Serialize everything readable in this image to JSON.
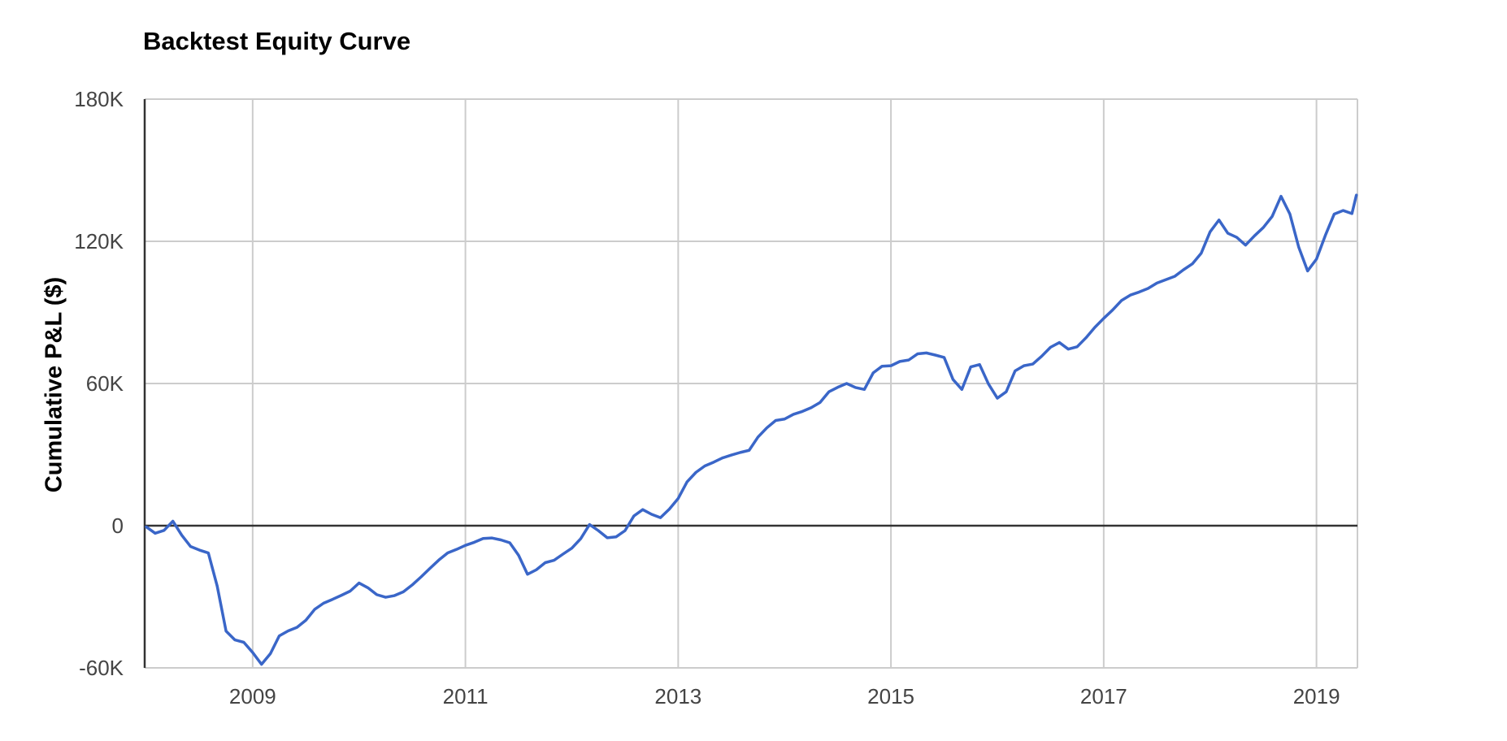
{
  "chart_data": {
    "type": "line",
    "title": "Backtest Equity Curve",
    "xlabel": "",
    "ylabel": "Cumulative P&L ($)",
    "series_name": "Cumulative P&L",
    "legend": "none",
    "grid": true,
    "x_start_year": 2008,
    "points_per_year": 12,
    "xlim": [
      2007.985,
      2019.385
    ],
    "ylim_thousands": [
      -60,
      180
    ],
    "x_ticks": [
      {
        "value": 2009,
        "label": "2009"
      },
      {
        "value": 2011,
        "label": "2011"
      },
      {
        "value": 2013,
        "label": "2013"
      },
      {
        "value": 2015,
        "label": "2015"
      },
      {
        "value": 2017,
        "label": "2017"
      },
      {
        "value": 2019,
        "label": "2019"
      }
    ],
    "y_ticks": [
      {
        "value": -60,
        "label": "-60K"
      },
      {
        "value": 0,
        "label": "0"
      },
      {
        "value": 60,
        "label": "60K"
      },
      {
        "value": 120,
        "label": "120K"
      },
      {
        "value": 180,
        "label": "180K"
      }
    ],
    "values_thousands": [
      -0.5,
      -3.2,
      -2.0,
      1.9,
      -4.0,
      -8.8,
      -10.3,
      -11.5,
      -25.5,
      -44.5,
      -48.2,
      -49.2,
      -53.5,
      -58.5,
      -54.0,
      -46.5,
      -44.4,
      -42.9,
      -39.9,
      -35.3,
      -32.7,
      -31.1,
      -29.4,
      -27.6,
      -24.2,
      -26.2,
      -29.1,
      -30.2,
      -29.5,
      -27.9,
      -25.0,
      -21.6,
      -18.0,
      -14.5,
      -11.5,
      -10.0,
      -8.3,
      -7.0,
      -5.4,
      -5.2,
      -6.0,
      -7.2,
      -12.5,
      -20.5,
      -18.6,
      -15.6,
      -14.6,
      -12.0,
      -9.5,
      -5.5,
      0.5,
      -2.1,
      -5.1,
      -4.7,
      -2.1,
      4.1,
      6.8,
      4.8,
      3.4,
      7.0,
      11.5,
      18.5,
      22.5,
      25.2,
      26.8,
      28.6,
      29.8,
      30.9,
      31.8,
      37.4,
      41.3,
      44.4,
      45.0,
      47.0,
      48.2,
      49.8,
      52.0,
      56.5,
      58.4,
      60.0,
      58.3,
      57.5,
      64.5,
      67.3,
      67.5,
      69.3,
      69.9,
      72.5,
      72.9,
      72.0,
      71.0,
      61.7,
      57.5,
      67.0,
      68.0,
      59.8,
      53.8,
      56.5,
      65.3,
      67.5,
      68.2,
      71.5,
      75.3,
      77.3,
      74.5,
      75.5,
      79.3,
      83.7,
      87.5,
      91.0,
      95.0,
      97.3,
      98.6,
      100.1,
      102.4,
      103.8,
      105.2,
      108.0,
      110.5,
      115.0,
      124.0,
      129.0,
      123.4,
      121.7,
      118.4,
      122.3,
      125.8,
      130.5,
      139.0,
      131.5,
      117.5,
      107.5,
      112.5,
      122.5,
      131.5,
      133.0,
      131.7
    ],
    "final_point": {
      "x": 2019.375,
      "value_thousands": 139.5
    },
    "colors": {
      "line": "#3A66C8",
      "grid": "#CCCCCC",
      "zero_line": "#333333",
      "axis_line": "#333333",
      "tick_text": "#444444",
      "title_text": "#000000",
      "background": "#FFFFFF"
    }
  }
}
